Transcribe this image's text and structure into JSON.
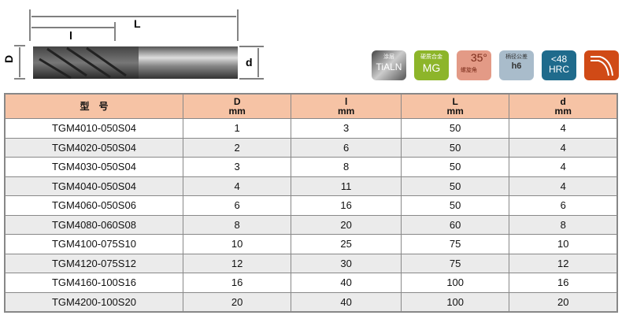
{
  "diagram": {
    "L": "L",
    "l": "l",
    "D": "D",
    "d": "d"
  },
  "badges": [
    {
      "top": "涂层",
      "main": "TiALN",
      "color": "#777777"
    },
    {
      "top": "硬质合金",
      "main": "MG",
      "color": "#8db52a"
    },
    {
      "top": "35°",
      "main": "螺旋角",
      "color": "#e39a86"
    },
    {
      "top": "柄径公差",
      "main": "h6",
      "color": "#a9bccb"
    },
    {
      "top": "<48",
      "main": "HRC",
      "color": "#1f6b8c"
    },
    {
      "icon": "corner-radius-icon",
      "color": "#d04a16"
    }
  ],
  "table": {
    "headers": [
      {
        "name": "型　号",
        "unit": ""
      },
      {
        "name": "D",
        "unit": "mm"
      },
      {
        "name": "l",
        "unit": "mm"
      },
      {
        "name": "L",
        "unit": "mm"
      },
      {
        "name": "d",
        "unit": "mm"
      }
    ],
    "rows": [
      [
        "TGM4010-050S04",
        "1",
        "3",
        "50",
        "4"
      ],
      [
        "TGM4020-050S04",
        "2",
        "6",
        "50",
        "4"
      ],
      [
        "TGM4030-050S04",
        "3",
        "8",
        "50",
        "4"
      ],
      [
        "TGM4040-050S04",
        "4",
        "11",
        "50",
        "4"
      ],
      [
        "TGM4060-050S06",
        "6",
        "16",
        "50",
        "6"
      ],
      [
        "TGM4080-060S08",
        "8",
        "20",
        "60",
        "8"
      ],
      [
        "TGM4100-075S10",
        "10",
        "25",
        "75",
        "10"
      ],
      [
        "TGM4120-075S12",
        "12",
        "30",
        "75",
        "12"
      ],
      [
        "TGM4160-100S16",
        "16",
        "40",
        "100",
        "16"
      ],
      [
        "TGM4200-100S20",
        "20",
        "40",
        "100",
        "20"
      ]
    ]
  }
}
